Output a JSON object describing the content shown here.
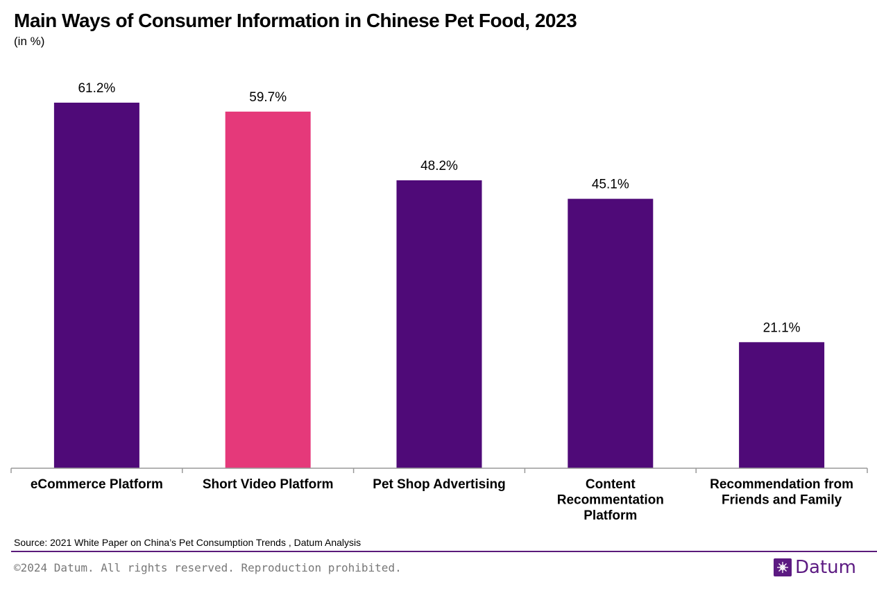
{
  "header": {
    "title": "Main Ways of Consumer Information in Chinese Pet Food, 2023",
    "subtitle": "(in %)"
  },
  "footer": {
    "source": "Source:  2021 White Paper on China’s Pet Consumption Trends , Datum Analysis",
    "copyright": "©2024 Datum. All rights reserved. Reproduction prohibited.",
    "brand_name": "Datum",
    "brand_icon": "datum-logo-icon",
    "brand_color": "#5c1a82"
  },
  "chart_data": {
    "type": "bar",
    "categories": [
      "eCommerce Platform",
      "Short Video Platform",
      "Pet Shop Advertising",
      "Content Recommentation Platform",
      "Recommendation from Friends and Family"
    ],
    "category_lines": [
      [
        "eCommerce Platform"
      ],
      [
        "Short Video Platform"
      ],
      [
        "Pet Shop Advertising"
      ],
      [
        "Content",
        "Recommentation",
        "Platform"
      ],
      [
        "Recommendation from",
        "Friends and Family"
      ]
    ],
    "values": [
      61.2,
      59.7,
      48.2,
      45.1,
      21.1
    ],
    "value_labels": [
      "61.2%",
      "59.7%",
      "48.2%",
      "45.1%",
      "21.1%"
    ],
    "colors": [
      "#4f0a78",
      "#e5397a",
      "#4f0a78",
      "#4f0a78",
      "#4f0a78"
    ],
    "ylim": [
      0,
      61.2
    ],
    "unit": "%",
    "grid": false,
    "legend": "none"
  }
}
